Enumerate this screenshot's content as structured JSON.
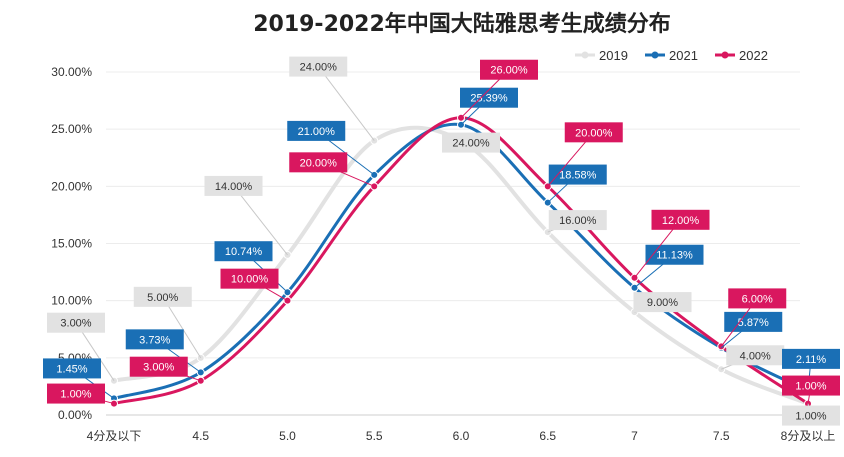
{
  "chart_data": {
    "type": "line",
    "title": "2019-2022年中国大陆雅思考生成绩分布",
    "categories": [
      "4分及以下",
      "4.5",
      "5.0",
      "5.5",
      "6.0",
      "6.5",
      "7",
      "7.5",
      "8分及以上"
    ],
    "y_ticks": [
      "0.00%",
      "5.00%",
      "10.00%",
      "15.00%",
      "20.00%",
      "25.00%",
      "30.00%"
    ],
    "ylim": [
      0,
      30
    ],
    "grid": true,
    "legend_position": "top-right",
    "smooth": true,
    "series": [
      {
        "name": "2019",
        "color": "#e2e2e2",
        "label_color": "#e2e2e2",
        "label_text_color": "#333333",
        "values": [
          3,
          5,
          14,
          24,
          24,
          16,
          9,
          4,
          1
        ],
        "labels": [
          "3.00%",
          "5.00%",
          "14.00%",
          "24.00%",
          "24.00%",
          "16.00%",
          "9.00%",
          "4.00%",
          "1.00%"
        ]
      },
      {
        "name": "2021",
        "color": "#1a6fb5",
        "label_color": "#1a6fb5",
        "label_text_color": "#ffffff",
        "values": [
          1.45,
          3.73,
          10.74,
          21,
          25.39,
          18.58,
          11.13,
          5.87,
          2.11
        ],
        "labels": [
          "1.45%",
          "3.73%",
          "10.74%",
          "21.00%",
          "25.39%",
          "18.58%",
          "11.13%",
          "5.87%",
          "2.11%"
        ]
      },
      {
        "name": "2022",
        "color": "#d9175f",
        "label_color": "#d9175f",
        "label_text_color": "#ffffff",
        "values": [
          1,
          3,
          10,
          20,
          26,
          20,
          12,
          6,
          1
        ],
        "labels": [
          "1.00%",
          "3.00%",
          "10.00%",
          "20.00%",
          "26.00%",
          "20.00%",
          "12.00%",
          "6.00%",
          "1.00%"
        ]
      }
    ]
  }
}
